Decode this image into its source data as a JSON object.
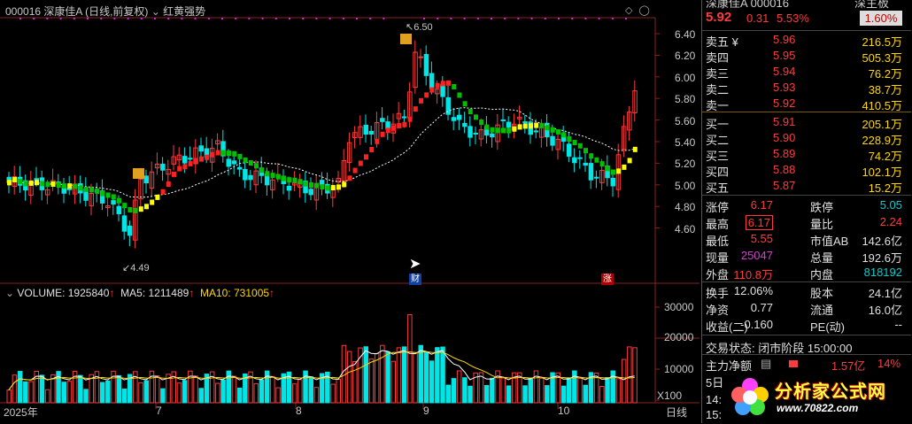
{
  "header": {
    "code": "000016",
    "name": "深康佳A",
    "mode": "(日线,前复权)",
    "indicator": "红黄强势"
  },
  "price_axis": [
    "6.40",
    "6.20",
    "6.00",
    "5.80",
    "5.60",
    "5.40",
    "5.20",
    "5.00",
    "4.80",
    "4.60"
  ],
  "annotations": {
    "high": "6.50",
    "low": "4.49",
    "fin_tag": "财",
    "rise_tag": "涨"
  },
  "volume_header": {
    "volume": "VOLUME: 1925840",
    "ma5": "MA5: 1211489",
    "ma10": "MA10: 731005"
  },
  "volume_axis": [
    "30000",
    "20000",
    "10000"
  ],
  "volume_unit": "X100",
  "date_axis": [
    "2025年",
    "7",
    "8",
    "9",
    "10",
    "日线"
  ],
  "right": {
    "top_name": "深康佳A 000016",
    "top_tag": "深主板",
    "price": "5.92",
    "change": "0.31",
    "change_pct": "5.53%",
    "top_pct": "1.60%",
    "sell": [
      {
        "label": "卖五 ¥",
        "price": "5.96",
        "vol": "216.5万"
      },
      {
        "label": "卖四",
        "price": "5.95",
        "vol": "505.3万"
      },
      {
        "label": "卖三",
        "price": "5.94",
        "vol": "76.2万"
      },
      {
        "label": "卖二",
        "price": "5.93",
        "vol": "38.7万"
      },
      {
        "label": "卖一",
        "price": "5.92",
        "vol": "410.5万"
      }
    ],
    "buy": [
      {
        "label": "买一",
        "price": "5.91",
        "vol": "205.1万"
      },
      {
        "label": "买二",
        "price": "5.90",
        "vol": "228.9万"
      },
      {
        "label": "买三",
        "price": "5.89",
        "vol": "74.2万"
      },
      {
        "label": "买四",
        "price": "5.88",
        "vol": "102.1万"
      },
      {
        "label": "买五",
        "price": "5.87",
        "vol": "15.2万"
      }
    ],
    "stats": [
      {
        "l1": "涨停",
        "v1": "6.17",
        "l2": "跌停",
        "v2": "5.05"
      },
      {
        "l1": "最高",
        "v1": "6.17",
        "l2": "量比",
        "v2": "2.24"
      },
      {
        "l1": "最低",
        "v1": "5.55",
        "l2": "市值AB",
        "v2": "142.6亿"
      },
      {
        "l1": "现量",
        "v1": "25047",
        "l2": "总量",
        "v2": "192.6万"
      },
      {
        "l1": "外盘",
        "v1": "110.8万",
        "l2": "内盘",
        "v2": "818192"
      }
    ],
    "stats2": [
      {
        "l1": "换手",
        "v1": "12.06%",
        "l2": "股本",
        "v2": "24.1亿"
      },
      {
        "l1": "净资",
        "v1": "0.77",
        "l2": "流通",
        "v2": "16.0亿"
      },
      {
        "l1": "收益(二)",
        "v1": "-0.160",
        "l2": "PE(动)",
        "v2": "--"
      }
    ],
    "trade_status": "交易状态: 闭市阶段 15:00:00",
    "main_flow_label": "主力净额",
    "main_flow_value": "1.57亿",
    "main_flow_pct": "14%",
    "row5": "5日",
    "row14": "14:",
    "row15": "15:"
  },
  "watermark": {
    "text": "分析家公式网",
    "url": "www.70822.com"
  },
  "colors": {
    "up": "#ff3b3b",
    "down": "#00e5e5",
    "yellow": "#ffff00",
    "white": "#ffffff",
    "green_line": "#00c000"
  }
}
